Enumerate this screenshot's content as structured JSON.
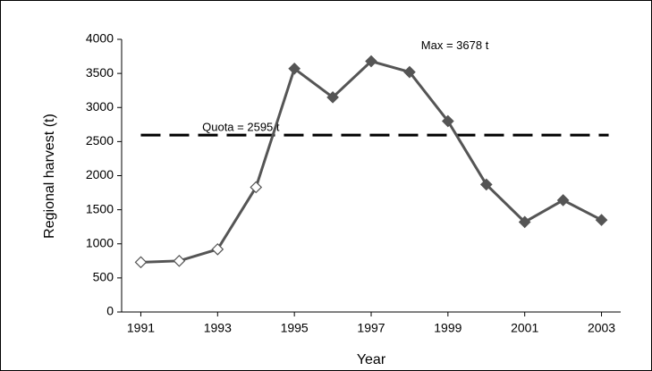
{
  "chart_data": {
    "type": "line",
    "x_label": "Year",
    "y_label": "Regional harvest (t)",
    "x": [
      1991,
      1992,
      1993,
      1994,
      1995,
      1996,
      1997,
      1998,
      1999,
      2000,
      2001,
      2002,
      2003
    ],
    "series": [
      {
        "color": "#555555",
        "values": [
          730,
          750,
          920,
          1830,
          3570,
          3150,
          3678,
          3520,
          2800,
          1870,
          1320,
          1640,
          1350
        ],
        "marker_fills": [
          "#ffffff",
          "#ffffff",
          "#ffffff",
          "#ffffff",
          "#555555",
          "#555555",
          "#555555",
          "#555555",
          "#555555",
          "#555555",
          "#555555",
          "#555555",
          "#555555"
        ]
      }
    ],
    "xlim": [
      1990.5,
      2003.5
    ],
    "xticks": [
      1991,
      1993,
      1995,
      1997,
      1999,
      2001,
      2003
    ],
    "ylim": [
      0,
      4000
    ],
    "yticks": [
      0,
      500,
      1000,
      1500,
      2000,
      2500,
      3000,
      3500,
      4000
    ],
    "reference_line": {
      "value": 2595,
      "color": "#000000"
    },
    "annotations": [
      {
        "text": "Quota = 2595 t",
        "x": 1992.6,
        "y": 2700
      },
      {
        "text": "Max = 3678 t",
        "x": 1998.3,
        "y": 3900
      }
    ]
  }
}
